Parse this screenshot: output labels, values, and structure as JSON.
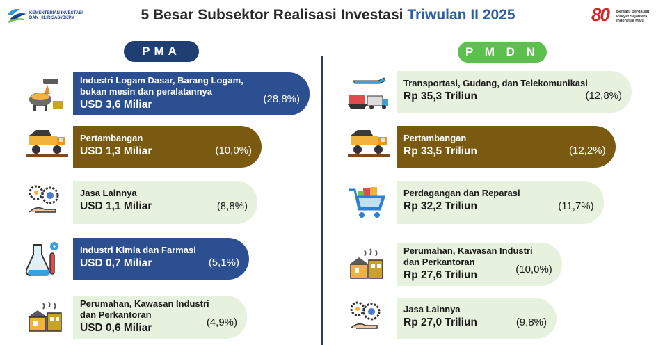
{
  "header": {
    "title_main": "5 Besar Subsektor Realisasi Investasi",
    "title_highlight": "Triwulan II 2025",
    "logo_left_text": "KEMENTERIAN INVESTASI DAN HILIRISASI/BKPM",
    "logo_right_number": "80",
    "logo_right_text": "Bersatu Berdaulat Rakyat Sejahtera Indonesia Maju"
  },
  "colors": {
    "navy": "#2c4f92",
    "olive": "#7a5a10",
    "light_green": "#e6f2de",
    "pma_pill": "#1f3f72",
    "pmdn_pill": "#5dbf4e"
  },
  "chart_data": [
    {
      "type": "bar",
      "title": "PMA",
      "unit": "USD Miliar",
      "categories": [
        "Industri Logam Dasar, Barang Logam, bukan mesin dan peralatannya",
        "Pertambangan",
        "Jasa Lainnya",
        "Industri Kimia dan Farmasi",
        "Perumahan, Kawasan Industri dan Perkantoran"
      ],
      "values": [
        3.6,
        1.3,
        1.1,
        0.7,
        0.6
      ],
      "shares_percent": [
        28.8,
        10.0,
        8.8,
        5.1,
        4.9
      ],
      "items": [
        {
          "label_lines": [
            "Industri Logam Dasar, Barang Logam,",
            "bukan mesin dan peralatannya"
          ],
          "value_text": "USD 3,6 Miliar",
          "pct_text": "(28,8%)",
          "style": "navy",
          "icon": "metal-smelting-icon"
        },
        {
          "label_lines": [
            "Pertambangan"
          ],
          "value_text": "USD 1,3 Miliar",
          "pct_text": "(10,0%)",
          "style": "olive",
          "icon": "mining-truck-icon"
        },
        {
          "label_lines": [
            "Jasa Lainnya"
          ],
          "value_text": "USD 1,1 Miliar",
          "pct_text": "(8,8%)",
          "style": "light",
          "icon": "service-gears-icon"
        },
        {
          "label_lines": [
            "Industri Kimia dan Farmasi"
          ],
          "value_text": "USD 0,7 Miliar",
          "pct_text": "(5,1%)",
          "style": "navy",
          "icon": "chemistry-flask-icon"
        },
        {
          "label_lines": [
            "Perumahan, Kawasan Industri",
            "dan Perkantoran"
          ],
          "value_text": "USD 0,6 Miliar",
          "pct_text": "(4,9%)",
          "style": "light",
          "icon": "factory-housing-icon"
        }
      ]
    },
    {
      "type": "bar",
      "title": "P M D N",
      "unit": "Rp Triliun",
      "categories": [
        "Transportasi, Gudang, dan Telekomunikasi",
        "Pertambangan",
        "Perdagangan dan Reparasi",
        "Perumahan, Kawasan Industri dan Perkantoran",
        "Jasa Lainnya"
      ],
      "values": [
        35.3,
        33.5,
        32.2,
        27.6,
        27.0
      ],
      "shares_percent": [
        12.8,
        12.2,
        11.7,
        10.0,
        9.8
      ],
      "items": [
        {
          "label_lines": [
            "Transportasi, Gudang, dan Telekomunikasi"
          ],
          "value_text": "Rp 35,3 Triliun",
          "pct_text": "(12,8%)",
          "style": "light",
          "icon": "transport-icon"
        },
        {
          "label_lines": [
            "Pertambangan"
          ],
          "value_text": "Rp 33,5 Triliun",
          "pct_text": "(12,2%)",
          "style": "olive",
          "icon": "mining-truck-icon"
        },
        {
          "label_lines": [
            "Perdagangan dan Reparasi"
          ],
          "value_text": "Rp 32,2 Triliun",
          "pct_text": "(11,7%)",
          "style": "light",
          "icon": "shopping-cart-icon"
        },
        {
          "label_lines": [
            "Perumahan, Kawasan Industri",
            "dan Perkantoran"
          ],
          "value_text": "Rp 27,6 Triliun",
          "pct_text": "(10,0%)",
          "style": "light",
          "icon": "factory-housing-icon"
        },
        {
          "label_lines": [
            "Jasa Lainnya"
          ],
          "value_text": "Rp 27,0 Triliun",
          "pct_text": "(9,8%)",
          "style": "light",
          "icon": "service-gears-icon"
        }
      ]
    }
  ]
}
